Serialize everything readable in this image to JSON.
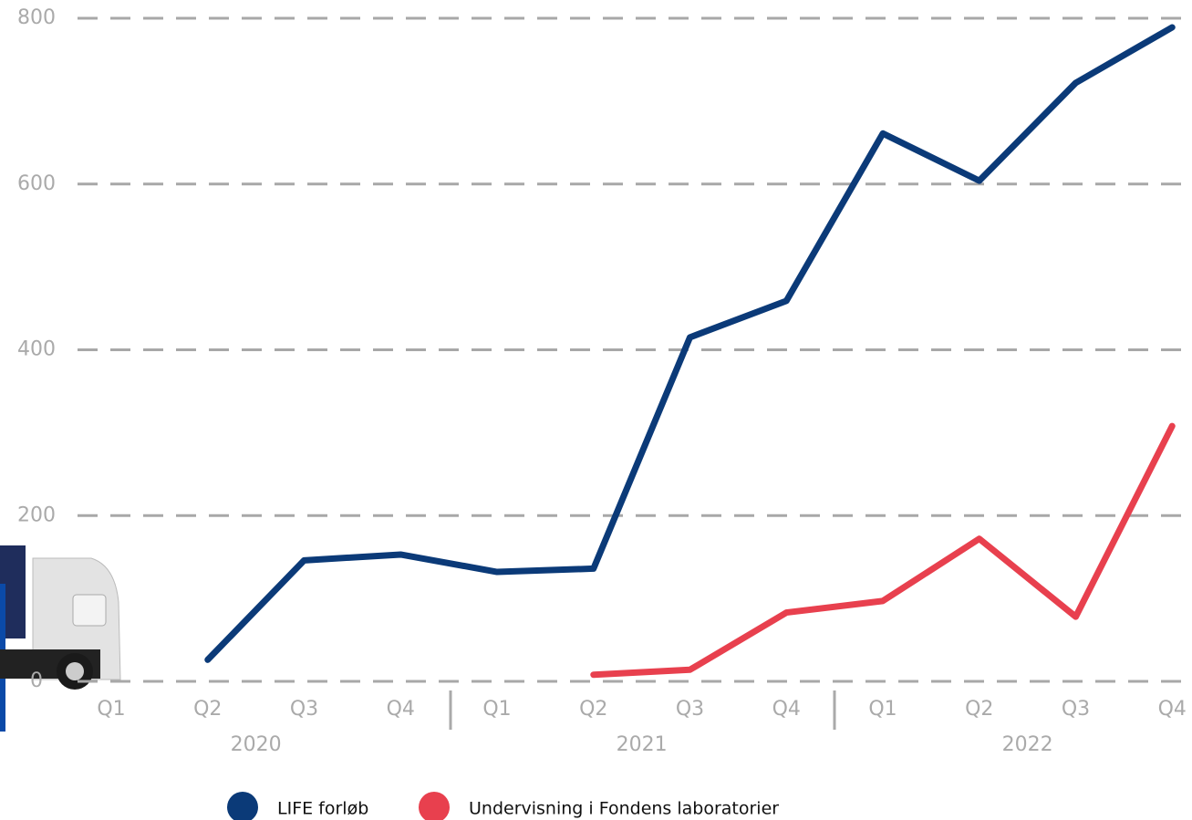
{
  "chart_data": {
    "type": "line",
    "categories": [
      "Q1",
      "Q2",
      "Q3",
      "Q4",
      "Q1",
      "Q2",
      "Q3",
      "Q4",
      "Q1",
      "Q2",
      "Q3",
      "Q4"
    ],
    "category_groups": [
      "2020",
      "2021",
      "2022"
    ],
    "series": [
      {
        "name": "LIFE forløb",
        "color": "#0b3a78",
        "values": [
          null,
          26,
          146,
          153,
          132,
          136,
          415,
          459,
          661,
          604,
          722,
          789
        ]
      },
      {
        "name": "Undervisning i Fondens laboratorier",
        "color": "#e8404e",
        "values": [
          null,
          null,
          null,
          null,
          null,
          8,
          14,
          83,
          97,
          172,
          78,
          308
        ]
      }
    ],
    "ylim": [
      0,
      800
    ],
    "yticks": [
      0,
      200,
      400,
      600,
      800
    ],
    "grid": true
  }
}
